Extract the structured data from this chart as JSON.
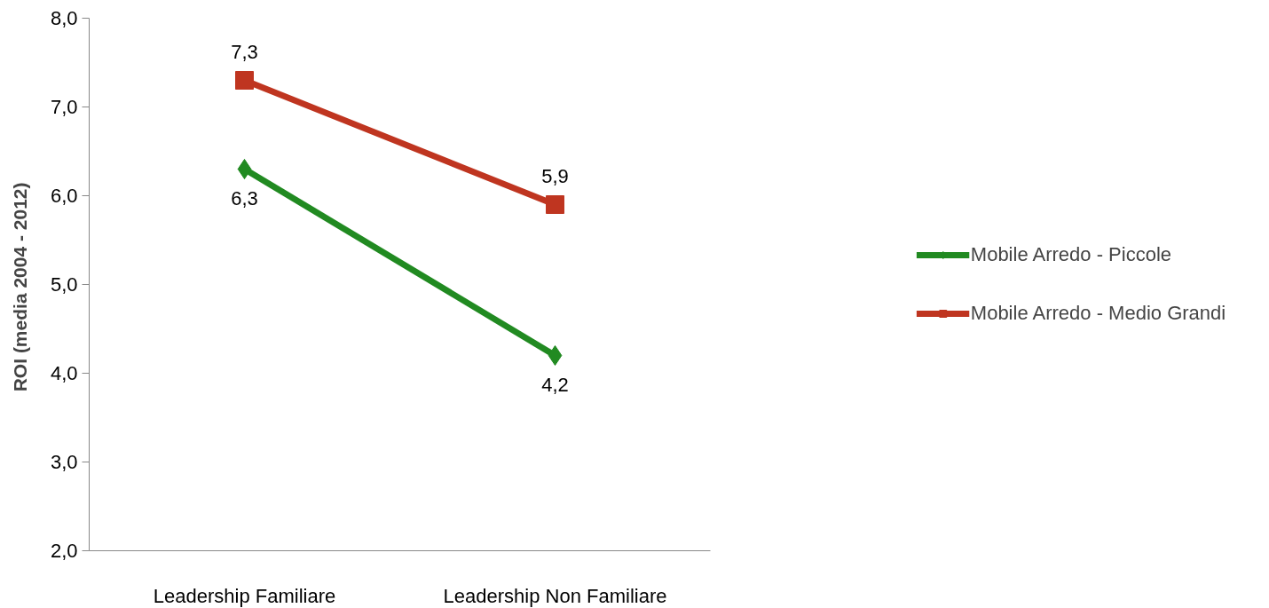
{
  "chart_data": {
    "type": "line",
    "ylabel": "ROI  (media 2004 - 2012)",
    "categories": [
      "Leadership Familiare",
      "Leadership Non Familiare"
    ],
    "series": [
      {
        "name": "Mobile Arredo - Piccole",
        "color": "#218a21",
        "marker": "diamond",
        "values": [
          6.3,
          4.2
        ],
        "value_labels": [
          "6,3",
          "4,2"
        ]
      },
      {
        "name": "Mobile Arredo - Medio Grandi",
        "color": "#bf3520",
        "marker": "square",
        "values": [
          7.3,
          5.9
        ],
        "value_labels": [
          "7,3",
          "5,9"
        ]
      }
    ],
    "ylim": [
      2,
      8
    ],
    "yticks": [
      {
        "value": 2,
        "label": "2,0"
      },
      {
        "value": 3,
        "label": "3,0"
      },
      {
        "value": 4,
        "label": "4,0"
      },
      {
        "value": 5,
        "label": "5,0"
      },
      {
        "value": 6,
        "label": "6,0"
      },
      {
        "value": 7,
        "label": "7,0"
      },
      {
        "value": 8,
        "label": "8,0"
      }
    ],
    "grid": false,
    "legend": "right",
    "data_labels": true
  }
}
